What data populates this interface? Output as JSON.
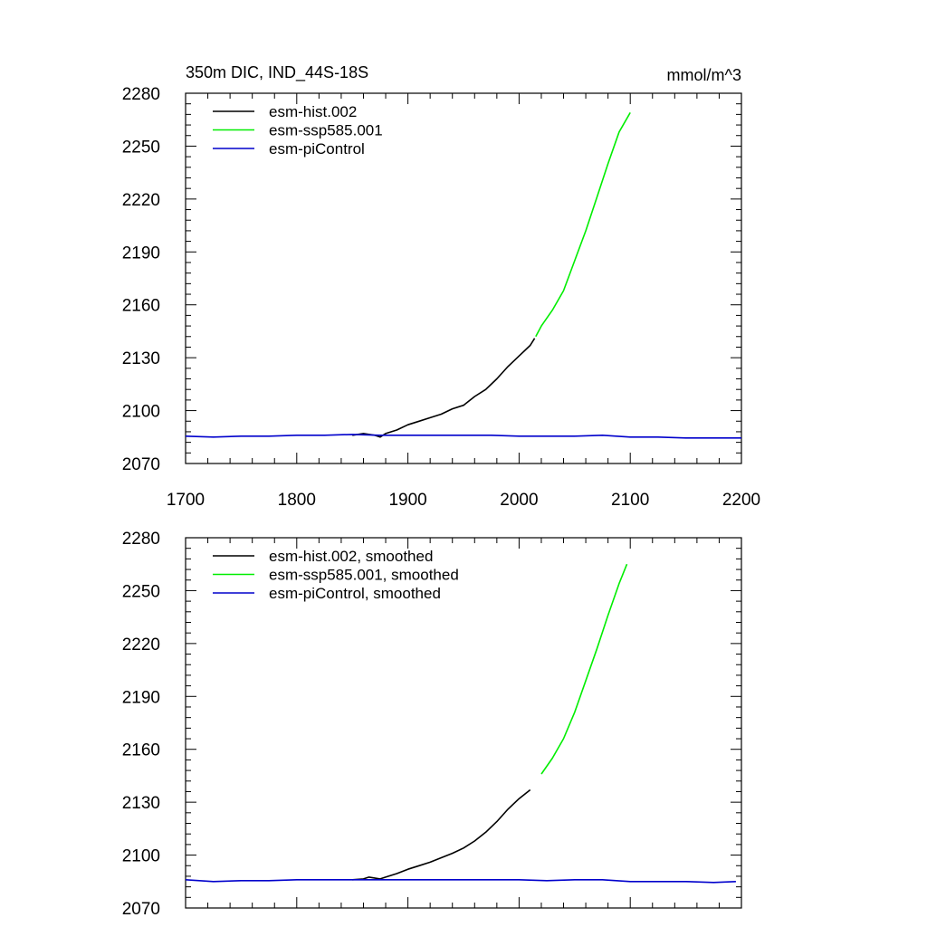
{
  "chart_data": [
    {
      "type": "line",
      "title": "350m DIC, IND_44S-18S",
      "units": "mmol/m^3",
      "xlim": [
        1700,
        2200
      ],
      "ylim": [
        2070,
        2280
      ],
      "xticks": [
        1700,
        1800,
        1900,
        2000,
        2100,
        2200
      ],
      "yticks": [
        2070,
        2100,
        2130,
        2160,
        2190,
        2220,
        2250,
        2280
      ],
      "show_x_tick_labels": true,
      "legend_position": "top-left",
      "series": [
        {
          "name": "esm-hist.002",
          "color": "#000000",
          "x": [
            1850,
            1860,
            1870,
            1875,
            1880,
            1890,
            1900,
            1910,
            1920,
            1930,
            1940,
            1950,
            1960,
            1970,
            1980,
            1990,
            2000,
            2010,
            2014
          ],
          "y": [
            2086,
            2087,
            2086,
            2085,
            2087,
            2089,
            2092,
            2094,
            2096,
            2098,
            2101,
            2103,
            2108,
            2112,
            2118,
            2125,
            2131,
            2137,
            2141
          ]
        },
        {
          "name": "esm-ssp585.001",
          "color": "#00ee00",
          "x": [
            2015,
            2020,
            2030,
            2040,
            2050,
            2060,
            2070,
            2080,
            2090,
            2100
          ],
          "y": [
            2142,
            2148,
            2157,
            2168,
            2185,
            2202,
            2221,
            2240,
            2258,
            2269
          ]
        },
        {
          "name": "esm-piControl",
          "color": "#0000cc",
          "x": [
            1700,
            1725,
            1750,
            1775,
            1800,
            1825,
            1850,
            1875,
            1900,
            1925,
            1950,
            1975,
            2000,
            2025,
            2050,
            2075,
            2100,
            2125,
            2150,
            2175,
            2200
          ],
          "y": [
            2085.5,
            2085,
            2085.5,
            2085.5,
            2086,
            2086,
            2086.5,
            2086,
            2086,
            2086,
            2086,
            2086,
            2085.5,
            2085.5,
            2085.5,
            2086,
            2085,
            2085,
            2084.5,
            2084.5,
            2084.5
          ]
        }
      ]
    },
    {
      "type": "line",
      "title": "",
      "units": "",
      "xlim": [
        1700,
        2200
      ],
      "ylim": [
        2070,
        2280
      ],
      "xticks": [
        1700,
        1800,
        1900,
        2000,
        2100,
        2200
      ],
      "yticks": [
        2070,
        2100,
        2130,
        2160,
        2190,
        2220,
        2250,
        2280
      ],
      "show_x_tick_labels": false,
      "legend_position": "top-left",
      "series": [
        {
          "name": "esm-hist.002, smoothed",
          "color": "#000000",
          "x": [
            1850,
            1860,
            1865,
            1870,
            1875,
            1880,
            1890,
            1900,
            1910,
            1920,
            1930,
            1940,
            1950,
            1960,
            1970,
            1980,
            1990,
            2000,
            2010
          ],
          "y": [
            2086,
            2086.5,
            2087.5,
            2087,
            2086.5,
            2087.5,
            2089.5,
            2092,
            2094,
            2096,
            2098.5,
            2101,
            2104,
            2108,
            2113,
            2119,
            2126,
            2132,
            2137
          ]
        },
        {
          "name": "esm-ssp585.001, smoothed",
          "color": "#00ee00",
          "x": [
            2020,
            2030,
            2040,
            2050,
            2060,
            2070,
            2080,
            2090,
            2097
          ],
          "y": [
            2146,
            2155,
            2166,
            2181,
            2199,
            2217,
            2236,
            2254,
            2265
          ]
        },
        {
          "name": "esm-piControl, smoothed",
          "color": "#0000cc",
          "x": [
            1700,
            1725,
            1750,
            1775,
            1800,
            1825,
            1850,
            1875,
            1900,
            1925,
            1950,
            1975,
            2000,
            2025,
            2050,
            2075,
            2100,
            2125,
            2150,
            2175,
            2195
          ],
          "y": [
            2086,
            2085,
            2085.5,
            2085.5,
            2086,
            2086,
            2086,
            2086,
            2086,
            2086,
            2086,
            2086,
            2086,
            2085.5,
            2086,
            2086,
            2085,
            2085,
            2085,
            2084.5,
            2085
          ]
        }
      ]
    }
  ]
}
